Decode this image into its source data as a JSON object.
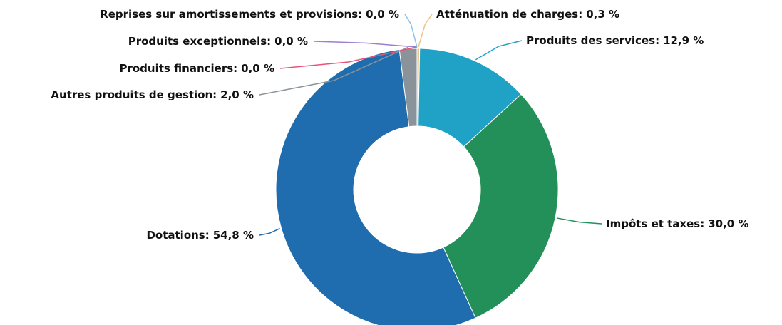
{
  "chart_data": {
    "type": "donut",
    "categories": [
      "Atténuation de charges",
      "Produits des services",
      "Impôts et taxes",
      "Dotations",
      "Autres produits de gestion",
      "Produits financiers",
      "Produits exceptionnels",
      "Reprises sur amortissements et provisions"
    ],
    "values": [
      0.3,
      12.9,
      30.0,
      54.8,
      2.0,
      0.0,
      0.0,
      0.0
    ],
    "value_labels": [
      "0,3 %",
      "12,9 %",
      "30,0 %",
      "54,8 %",
      "2,0 %",
      "0,0 %",
      "0,0 %",
      "0,0 %"
    ],
    "label_separator": ":",
    "colors": [
      "#efc28c",
      "#1fa2c6",
      "#23905a",
      "#1f6cae",
      "#8a9399",
      "#e8537a",
      "#9b7fd0",
      "#8fc3e8"
    ]
  }
}
